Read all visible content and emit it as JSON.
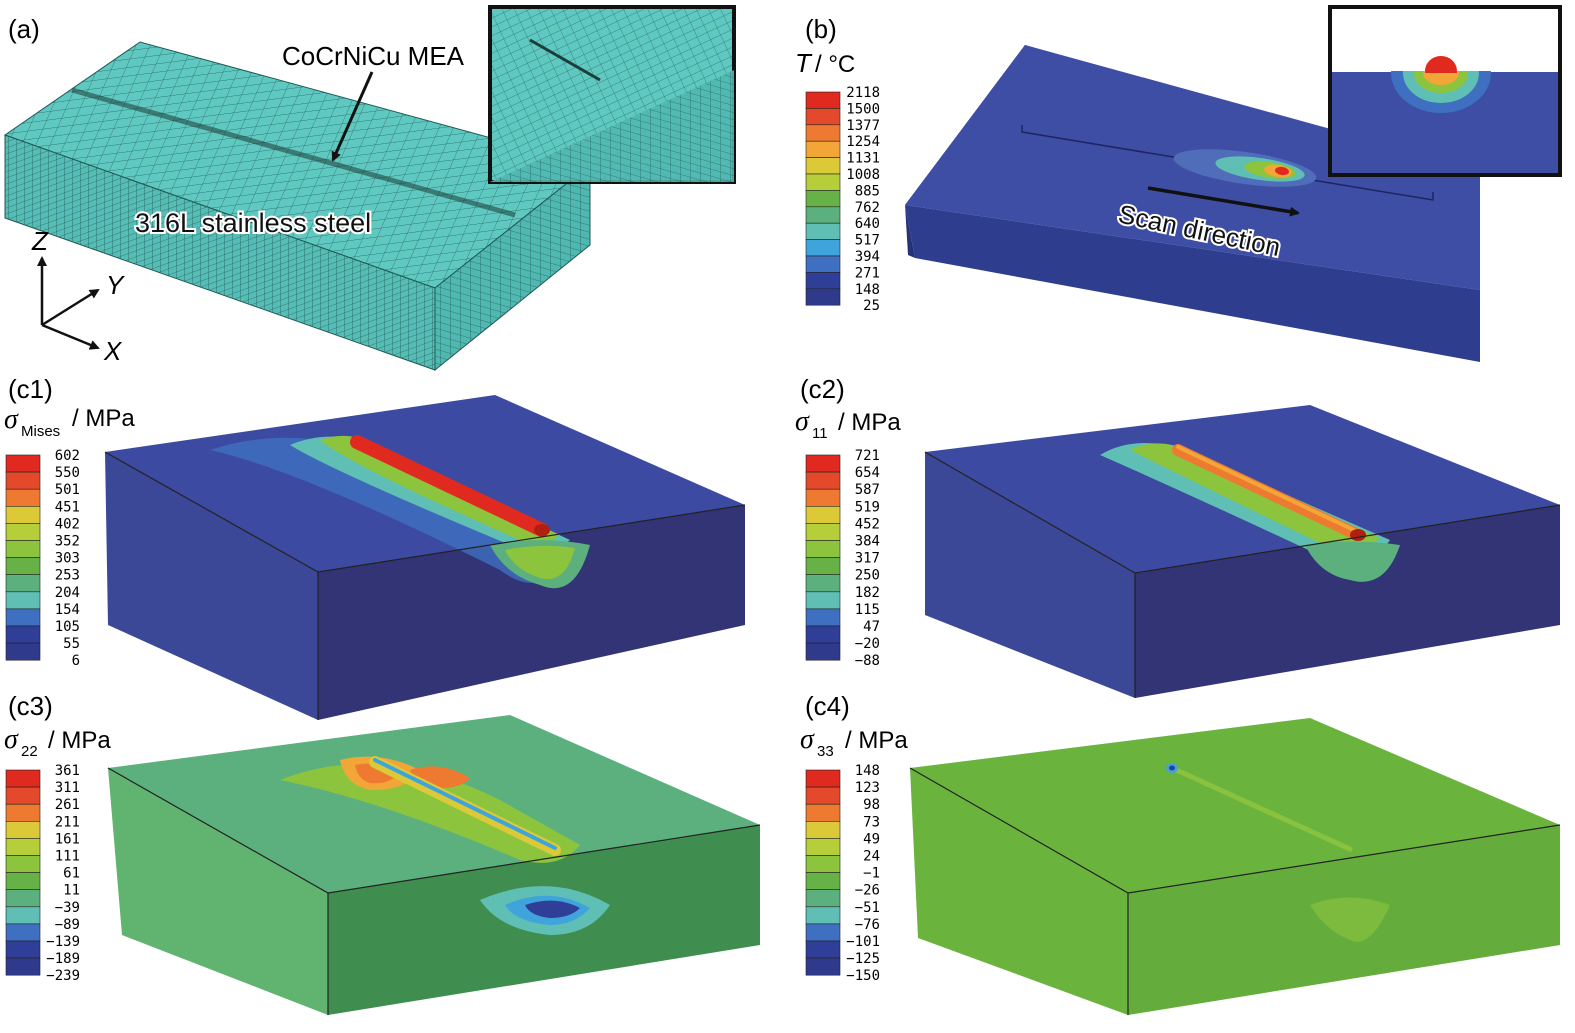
{
  "panels": {
    "a": {
      "label": "(a)",
      "annotation_mea": "CoCrNiCu MEA",
      "annotation_steel": "316L stainless steel",
      "axes": {
        "z": "Z",
        "y": "Y",
        "x": "X"
      }
    },
    "b": {
      "label": "(b)",
      "legend_symbol": "T",
      "legend_unit": "/ °C",
      "legend_values": [
        "2118",
        "1500",
        "1377",
        "1254",
        "1131",
        "1008",
        "885",
        "762",
        "640",
        "517",
        "394",
        "271",
        "148",
        "25"
      ],
      "annotation": "Scan direction"
    },
    "c1": {
      "label": "(c1)",
      "legend_symbol": "σ",
      "legend_subscript": "Mises",
      "legend_unit": "/ MPa",
      "legend_values": [
        "602",
        "550",
        "501",
        "451",
        "402",
        "352",
        "303",
        "253",
        "204",
        "154",
        "105",
        "55",
        "6"
      ]
    },
    "c2": {
      "label": "(c2)",
      "legend_symbol": "σ",
      "legend_subscript": "11",
      "legend_unit": "/ MPa",
      "legend_values": [
        "721",
        "654",
        "587",
        "519",
        "452",
        "384",
        "317",
        "250",
        "182",
        "115",
        "47",
        "−20",
        "−88"
      ]
    },
    "c3": {
      "label": "(c3)",
      "legend_symbol": "σ",
      "legend_subscript": "22",
      "legend_unit": "/ MPa",
      "legend_values": [
        "361",
        "311",
        "261",
        "211",
        "161",
        "111",
        "61",
        "11",
        "−39",
        "−89",
        "−139",
        "−189",
        "−239"
      ]
    },
    "c4": {
      "label": "(c4)",
      "legend_symbol": "σ",
      "legend_subscript": "33",
      "legend_unit": "/ MPa",
      "legend_values": [
        "148",
        "123",
        "98",
        "73",
        "49",
        "24",
        "−1",
        "−26",
        "−51",
        "−76",
        "−101",
        "−125",
        "−150"
      ]
    }
  },
  "colors": {
    "mesh": "#5fc9c1",
    "mesh_line": "#1f5a56",
    "contour_scale": [
      "#e02a1f",
      "#e5492b",
      "#ed7a30",
      "#f2a637",
      "#dcc937",
      "#b6ce3a",
      "#8cc43e",
      "#66b246",
      "#5bb07e",
      "#5fbfb4",
      "#3ea4db",
      "#3e6fc0",
      "#2f3f98",
      "#303a8c"
    ]
  }
}
